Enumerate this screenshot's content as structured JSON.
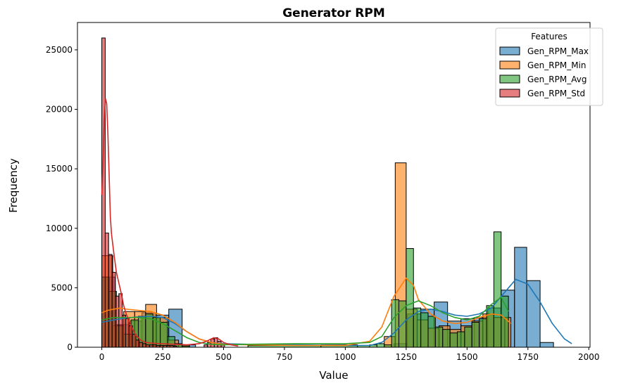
{
  "chart_data": {
    "type": "histogram",
    "title": "Generator RPM",
    "xlabel": "Value",
    "ylabel": "Frequency",
    "xlim": [
      -100,
      2005
    ],
    "ylim": [
      0,
      27300
    ],
    "xticks": [
      0,
      250,
      500,
      750,
      1000,
      1250,
      1500,
      1750,
      2000
    ],
    "yticks": [
      0,
      5000,
      10000,
      15000,
      20000,
      25000
    ],
    "legend": {
      "title": "Features",
      "position": "top-right"
    },
    "series": [
      {
        "name": "Gen_RPM_Max",
        "color": "#1f77b4",
        "bins": [
          [
            0,
            55,
            5900
          ],
          [
            55,
            110,
            1900
          ],
          [
            110,
            165,
            2200
          ],
          [
            165,
            220,
            2900
          ],
          [
            220,
            275,
            2700
          ],
          [
            275,
            330,
            3200
          ],
          [
            330,
            385,
            200
          ],
          [
            1200,
            1255,
            300
          ],
          [
            1255,
            1310,
            2800
          ],
          [
            1310,
            1365,
            3200
          ],
          [
            1365,
            1420,
            3800
          ],
          [
            1420,
            1475,
            2200
          ],
          [
            1475,
            1530,
            2400
          ],
          [
            1530,
            1585,
            2500
          ],
          [
            1585,
            1640,
            3300
          ],
          [
            1640,
            1695,
            4800
          ],
          [
            1695,
            1745,
            8400
          ],
          [
            1745,
            1800,
            5600
          ],
          [
            1800,
            1855,
            400
          ]
        ],
        "kde": [
          [
            0,
            2100
          ],
          [
            50,
            2300
          ],
          [
            100,
            2450
          ],
          [
            150,
            2550
          ],
          [
            200,
            2600
          ],
          [
            250,
            2500
          ],
          [
            300,
            2000
          ],
          [
            350,
            1300
          ],
          [
            400,
            700
          ],
          [
            450,
            400
          ],
          [
            500,
            300
          ],
          [
            600,
            250
          ],
          [
            800,
            200
          ],
          [
            1000,
            150
          ],
          [
            1100,
            150
          ],
          [
            1150,
            400
          ],
          [
            1200,
            1200
          ],
          [
            1250,
            2300
          ],
          [
            1300,
            3000
          ],
          [
            1350,
            3200
          ],
          [
            1400,
            3000
          ],
          [
            1450,
            2700
          ],
          [
            1500,
            2600
          ],
          [
            1550,
            2800
          ],
          [
            1600,
            3300
          ],
          [
            1650,
            4500
          ],
          [
            1700,
            5700
          ],
          [
            1750,
            5300
          ],
          [
            1800,
            3800
          ],
          [
            1850,
            2000
          ],
          [
            1900,
            700
          ],
          [
            1930,
            300
          ]
        ]
      },
      {
        "name": "Gen_RPM_Min",
        "color": "#ff7f0e",
        "bins": [
          [
            0,
            45,
            7700
          ],
          [
            45,
            90,
            1800
          ],
          [
            90,
            135,
            3000
          ],
          [
            135,
            180,
            3000
          ],
          [
            180,
            225,
            3600
          ],
          [
            225,
            270,
            2500
          ],
          [
            270,
            315,
            600
          ],
          [
            315,
            360,
            200
          ],
          [
            1160,
            1205,
            900
          ],
          [
            1205,
            1250,
            15500
          ],
          [
            1250,
            1295,
            3200
          ],
          [
            1295,
            1340,
            2300
          ],
          [
            1340,
            1385,
            1600
          ],
          [
            1385,
            1430,
            1800
          ],
          [
            1430,
            1475,
            1500
          ],
          [
            1475,
            1520,
            1800
          ],
          [
            1520,
            1565,
            2200
          ],
          [
            1565,
            1610,
            2800
          ],
          [
            1610,
            1655,
            2500
          ],
          [
            1655,
            1680,
            2500
          ]
        ],
        "kde": [
          [
            0,
            2900
          ],
          [
            25,
            3100
          ],
          [
            50,
            3200
          ],
          [
            75,
            3300
          ],
          [
            100,
            3200
          ],
          [
            150,
            3100
          ],
          [
            200,
            3000
          ],
          [
            250,
            2700
          ],
          [
            300,
            2100
          ],
          [
            350,
            1300
          ],
          [
            400,
            700
          ],
          [
            450,
            400
          ],
          [
            500,
            250
          ],
          [
            600,
            200
          ],
          [
            800,
            150
          ],
          [
            1000,
            150
          ],
          [
            1100,
            500
          ],
          [
            1150,
            1700
          ],
          [
            1200,
            4300
          ],
          [
            1250,
            5800
          ],
          [
            1280,
            5200
          ],
          [
            1300,
            4000
          ],
          [
            1350,
            2800
          ],
          [
            1400,
            2200
          ],
          [
            1450,
            2000
          ],
          [
            1500,
            2100
          ],
          [
            1550,
            2500
          ],
          [
            1600,
            2800
          ],
          [
            1640,
            2700
          ],
          [
            1680,
            2000
          ]
        ]
      },
      {
        "name": "Gen_RPM_Avg",
        "color": "#2ca02c",
        "bins": [
          [
            0,
            30,
            5900
          ],
          [
            30,
            60,
            4700
          ],
          [
            60,
            90,
            1800
          ],
          [
            90,
            120,
            1100
          ],
          [
            120,
            150,
            2300
          ],
          [
            150,
            180,
            2600
          ],
          [
            180,
            210,
            2800
          ],
          [
            210,
            240,
            2500
          ],
          [
            240,
            270,
            2100
          ],
          [
            270,
            300,
            900
          ],
          [
            300,
            330,
            300
          ],
          [
            330,
            360,
            100
          ],
          [
            600,
            900,
            150
          ],
          [
            900,
            1050,
            200
          ],
          [
            1050,
            1100,
            150
          ],
          [
            1100,
            1130,
            200
          ],
          [
            1130,
            1160,
            300
          ],
          [
            1160,
            1190,
            200
          ],
          [
            1190,
            1220,
            4000
          ],
          [
            1220,
            1250,
            3900
          ],
          [
            1250,
            1280,
            8300
          ],
          [
            1280,
            1310,
            3300
          ],
          [
            1310,
            1340,
            2900
          ],
          [
            1340,
            1370,
            2600
          ],
          [
            1370,
            1400,
            1700
          ],
          [
            1400,
            1430,
            1500
          ],
          [
            1430,
            1460,
            1200
          ],
          [
            1460,
            1490,
            1300
          ],
          [
            1490,
            1520,
            1700
          ],
          [
            1520,
            1550,
            2100
          ],
          [
            1550,
            1580,
            2400
          ],
          [
            1580,
            1610,
            3500
          ],
          [
            1610,
            1640,
            9700
          ],
          [
            1640,
            1670,
            4300
          ]
        ],
        "kde": [
          [
            0,
            2300
          ],
          [
            50,
            2500
          ],
          [
            100,
            2500
          ],
          [
            150,
            2500
          ],
          [
            200,
            2400
          ],
          [
            250,
            2000
          ],
          [
            300,
            1400
          ],
          [
            350,
            800
          ],
          [
            400,
            400
          ],
          [
            450,
            250
          ],
          [
            500,
            200
          ],
          [
            600,
            250
          ],
          [
            800,
            300
          ],
          [
            1000,
            300
          ],
          [
            1100,
            400
          ],
          [
            1150,
            900
          ],
          [
            1200,
            2500
          ],
          [
            1250,
            3500
          ],
          [
            1300,
            3900
          ],
          [
            1350,
            3500
          ],
          [
            1400,
            2900
          ],
          [
            1450,
            2500
          ],
          [
            1500,
            2300
          ],
          [
            1550,
            2600
          ],
          [
            1600,
            3600
          ],
          [
            1640,
            4200
          ],
          [
            1670,
            3000
          ]
        ]
      },
      {
        "name": "Gen_RPM_Std",
        "color": "#d62728",
        "bins": [
          [
            0,
            14,
            26000
          ],
          [
            14,
            28,
            9600
          ],
          [
            28,
            42,
            7800
          ],
          [
            42,
            56,
            6300
          ],
          [
            56,
            70,
            4300
          ],
          [
            70,
            84,
            4500
          ],
          [
            84,
            98,
            2700
          ],
          [
            98,
            112,
            2400
          ],
          [
            112,
            126,
            1800
          ],
          [
            126,
            140,
            1100
          ],
          [
            140,
            154,
            600
          ],
          [
            154,
            168,
            400
          ],
          [
            168,
            182,
            300
          ],
          [
            182,
            196,
            200
          ],
          [
            196,
            210,
            200
          ],
          [
            210,
            224,
            200
          ],
          [
            224,
            238,
            150
          ],
          [
            238,
            252,
            150
          ],
          [
            252,
            266,
            150
          ],
          [
            266,
            280,
            150
          ],
          [
            280,
            294,
            150
          ],
          [
            294,
            308,
            100
          ],
          [
            420,
            434,
            200
          ],
          [
            434,
            448,
            400
          ],
          [
            448,
            462,
            700
          ],
          [
            462,
            476,
            800
          ],
          [
            476,
            490,
            500
          ],
          [
            490,
            504,
            200
          ]
        ],
        "kde": [
          [
            0,
            12800
          ],
          [
            5,
            15500
          ],
          [
            10,
            19000
          ],
          [
            15,
            20900
          ],
          [
            20,
            20500
          ],
          [
            25,
            18000
          ],
          [
            30,
            14500
          ],
          [
            35,
            11000
          ],
          [
            40,
            9500
          ],
          [
            50,
            7800
          ],
          [
            60,
            6300
          ],
          [
            70,
            5400
          ],
          [
            80,
            4500
          ],
          [
            90,
            3500
          ],
          [
            100,
            2800
          ],
          [
            120,
            1800
          ],
          [
            140,
            1000
          ],
          [
            160,
            600
          ],
          [
            180,
            400
          ],
          [
            200,
            350
          ],
          [
            240,
            300
          ],
          [
            300,
            250
          ],
          [
            350,
            200
          ],
          [
            400,
            300
          ],
          [
            430,
            500
          ],
          [
            460,
            800
          ],
          [
            480,
            700
          ],
          [
            500,
            400
          ],
          [
            530,
            200
          ],
          [
            560,
            100
          ]
        ]
      }
    ]
  }
}
